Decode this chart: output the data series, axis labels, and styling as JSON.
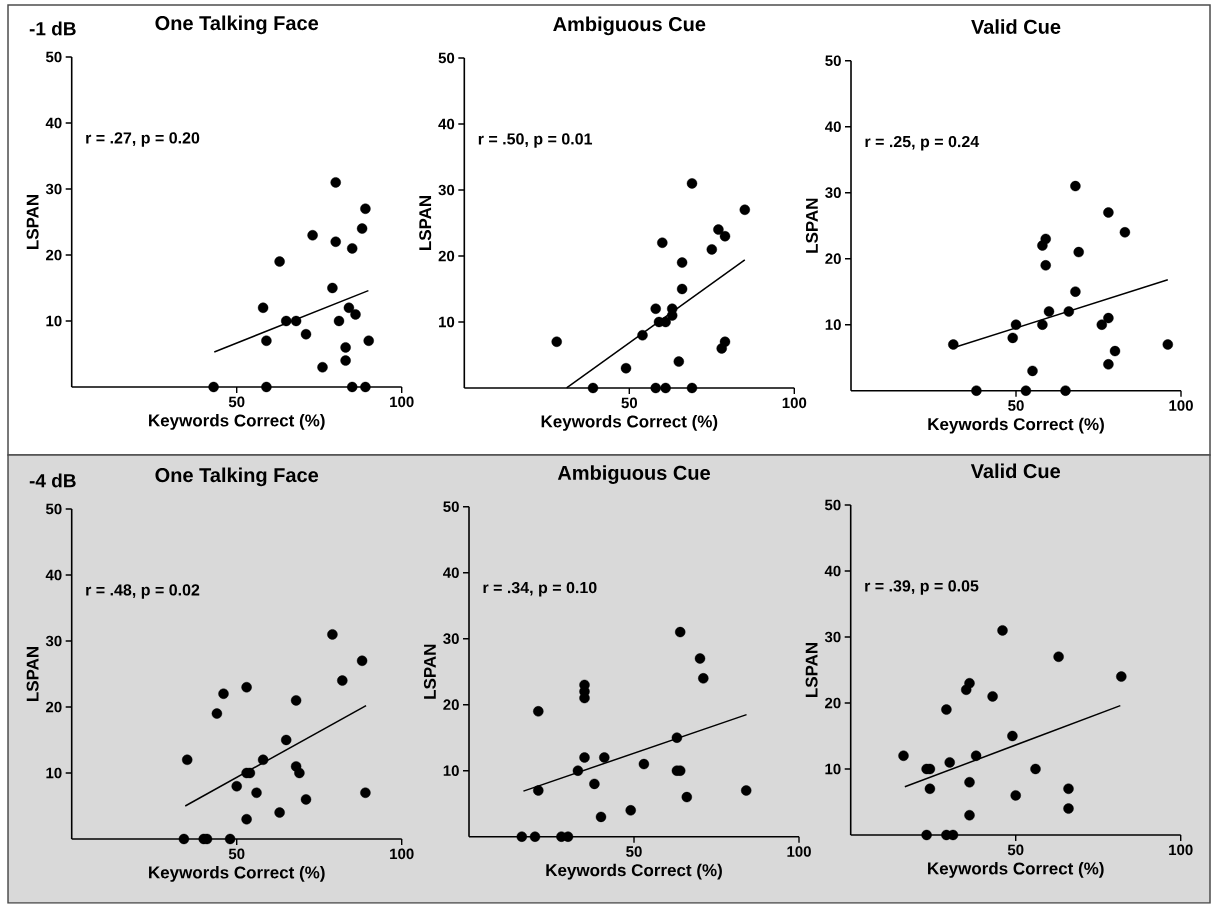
{
  "chart_data": [
    {
      "type": "scatter",
      "title": "One Talking Face",
      "xlabel": "Keywords Correct (%)",
      "ylabel": "LSPAN",
      "xlim": [
        0,
        100
      ],
      "ylim": [
        0,
        50
      ],
      "xticks": [
        50,
        100
      ],
      "yticks": [
        10,
        20,
        30,
        40,
        50
      ],
      "marker": "circle",
      "annotations": [
        "-1 dB",
        "r = .27, p = 0.20"
      ],
      "series": [
        {
          "color": "#000000",
          "x": [
            43,
            59,
            85,
            89,
            80,
            89,
            73,
            88,
            80,
            85,
            63,
            79,
            58,
            84,
            65,
            68,
            81,
            86,
            71,
            59,
            90,
            83,
            83,
            76
          ],
          "values": [
            0,
            0,
            0,
            0,
            31,
            27,
            23,
            24,
            22,
            21,
            19,
            15,
            12,
            12,
            10,
            10,
            10,
            11,
            8,
            7,
            7,
            6,
            4,
            3
          ]
        },
        {
          "type": "line",
          "color": "#000000",
          "marker": "none",
          "x": [
            43.2,
            89.9
          ],
          "values": [
            5.3,
            14.6
          ]
        }
      ]
    },
    {
      "type": "scatter",
      "title": "Ambiguous Cue",
      "xlabel": "Keywords Correct (%)",
      "ylabel": "LSPAN",
      "xlim": [
        0,
        100
      ],
      "ylim": [
        0,
        50
      ],
      "xticks": [
        50,
        100
      ],
      "yticks": [
        10,
        20,
        30,
        40,
        50
      ],
      "marker": "circle",
      "annotations": [
        "r = .50, p = 0.01"
      ],
      "series": [
        {
          "color": "#000000",
          "x": [
            39,
            58,
            61,
            69,
            69,
            85,
            77,
            79,
            60,
            75,
            66,
            66,
            58,
            63,
            63,
            59,
            61,
            54,
            28,
            79,
            78,
            65,
            49
          ],
          "values": [
            0,
            0,
            0,
            0,
            31,
            27,
            24,
            23,
            22,
            21,
            19,
            15,
            12,
            12,
            11,
            10,
            10,
            8,
            7,
            7,
            6,
            4,
            3
          ]
        },
        {
          "type": "line",
          "color": "#000000",
          "marker": "none",
          "x": [
            31,
            85
          ],
          "values": [
            0,
            19.4
          ]
        }
      ]
    },
    {
      "type": "scatter",
      "title": "Valid Cue",
      "xlabel": "Keywords Correct (%)",
      "ylabel": "LSPAN",
      "xlim": [
        0,
        100
      ],
      "ylim": [
        0,
        50
      ],
      "xticks": [
        50,
        100
      ],
      "yticks": [
        10,
        20,
        30,
        40,
        50
      ],
      "marker": "circle",
      "annotations": [
        "r = .25, p = 0.24"
      ],
      "series": [
        {
          "color": "#000000",
          "x": [
            38,
            53,
            65,
            68,
            78,
            83,
            59,
            58,
            69,
            59,
            68,
            60,
            66,
            78,
            50,
            58,
            76,
            31,
            96,
            49,
            80,
            78,
            55
          ],
          "values": [
            0,
            0,
            0,
            31,
            27,
            24,
            23,
            22,
            21,
            19,
            15,
            12,
            12,
            11,
            10,
            10,
            10,
            7,
            7,
            8,
            6,
            4,
            3
          ]
        },
        {
          "type": "line",
          "color": "#000000",
          "marker": "none",
          "x": [
            31,
            96
          ],
          "values": [
            6.5,
            16.8
          ]
        }
      ]
    },
    {
      "type": "scatter",
      "title": "One Talking Face",
      "xlabel": "Keywords Correct (%)",
      "ylabel": "LSPAN",
      "xlim": [
        0,
        100
      ],
      "ylim": [
        0,
        50
      ],
      "xticks": [
        50,
        100
      ],
      "yticks": [
        10,
        20,
        30,
        40,
        50
      ],
      "marker": "circle",
      "annotations": [
        "-4 dB",
        "r = .48, p = 0.02"
      ],
      "series": [
        {
          "color": "#000000",
          "x": [
            34,
            40,
            41,
            48,
            79,
            88,
            82,
            53,
            46,
            68,
            44,
            65,
            35,
            58,
            68,
            53,
            54,
            69,
            50,
            56,
            89,
            71,
            63,
            53
          ],
          "values": [
            0,
            0,
            0,
            0,
            31,
            27,
            24,
            23,
            22,
            21,
            19,
            15,
            12,
            12,
            11,
            10,
            10,
            10,
            8,
            7,
            7,
            6,
            4,
            3
          ]
        },
        {
          "type": "line",
          "color": "#000000",
          "marker": "none",
          "x": [
            34.4,
            89.2
          ],
          "values": [
            5,
            20.2
          ]
        }
      ]
    },
    {
      "type": "scatter",
      "title": "Ambiguous Cue",
      "xlabel": "Keywords Correct (%)",
      "ylabel": "LSPAN",
      "xlim": [
        0,
        100
      ],
      "ylim": [
        0,
        50
      ],
      "xticks": [
        50,
        100
      ],
      "yticks": [
        10,
        20,
        30,
        40,
        50
      ],
      "marker": "circle",
      "annotations": [
        "r = .34, p = 0.10"
      ],
      "series": [
        {
          "color": "#000000",
          "x": [
            16,
            20,
            28,
            30,
            64,
            70,
            71,
            35,
            35,
            35,
            21,
            63,
            35,
            41,
            53,
            33,
            63,
            64,
            38,
            21,
            84,
            66,
            49,
            40
          ],
          "values": [
            0,
            0,
            0,
            0,
            31,
            27,
            24,
            23,
            22,
            21,
            19,
            15,
            12,
            12,
            11,
            10,
            10,
            10,
            8,
            7,
            7,
            6,
            4,
            3
          ]
        },
        {
          "type": "line",
          "color": "#000000",
          "marker": "none",
          "x": [
            16.5,
            84.1
          ],
          "values": [
            6.9,
            18.5
          ]
        }
      ]
    },
    {
      "type": "scatter",
      "title": "Valid Cue",
      "xlabel": "Keywords Correct (%)",
      "ylabel": "LSPAN",
      "xlim": [
        0,
        100
      ],
      "ylim": [
        0,
        50
      ],
      "xticks": [
        50,
        100
      ],
      "yticks": [
        10,
        20,
        30,
        40,
        50
      ],
      "marker": "circle",
      "annotations": [
        "r = .39, p = 0.05"
      ],
      "series": [
        {
          "color": "#000000",
          "x": [
            23,
            29,
            31,
            46,
            63,
            82,
            36,
            35,
            43,
            29,
            49,
            16,
            38,
            30,
            23,
            24,
            56,
            36,
            24,
            66,
            50,
            66,
            36
          ],
          "values": [
            0,
            0,
            0,
            31,
            27,
            24,
            23,
            22,
            21,
            19,
            15,
            12,
            12,
            11,
            10,
            10,
            10,
            8,
            7,
            7,
            6,
            4,
            3
          ]
        },
        {
          "type": "line",
          "color": "#000000",
          "marker": "none",
          "x": [
            16.4,
            81.7
          ],
          "values": [
            7.3,
            19.6
          ]
        }
      ]
    }
  ]
}
